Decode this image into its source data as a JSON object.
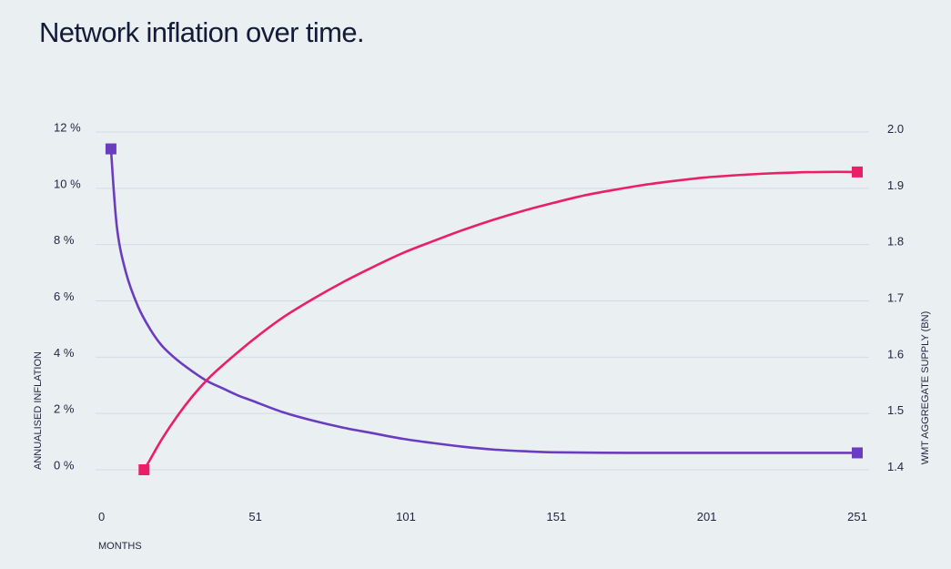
{
  "page": {
    "title": "Network inflation over time."
  },
  "chart_data": {
    "type": "line",
    "title": "Network inflation over time.",
    "xlabel": "MONTHS",
    "ylabel_left": "ANNUALISED INFLATION",
    "ylabel_right": "WMT AGGREGATE SUPPLY (BN)",
    "x_ticks": [
      "0",
      "51",
      "101",
      "151",
      "201",
      "251"
    ],
    "xlim": [
      0,
      251
    ],
    "y_left_ticks": [
      "0 %",
      "2 %",
      "4 %",
      "6 %",
      "8 %",
      "10 %",
      "12 %"
    ],
    "y_left_lim": [
      0,
      12
    ],
    "y_right_ticks": [
      "1.4",
      "1.5",
      "1.6",
      "1.7",
      "1.8",
      "1.9",
      "2.0"
    ],
    "y_right_lim": [
      1.4,
      2.0
    ],
    "grid": true,
    "legend": "none",
    "series": [
      {
        "axis": "left",
        "color": "#6a3cc0",
        "marker": "square",
        "x": [
          3,
          5,
          8,
          12,
          16,
          20,
          25,
          30,
          35,
          40,
          45,
          50,
          60,
          70,
          80,
          90,
          100,
          110,
          120,
          130,
          140,
          150,
          175,
          200,
          225,
          251
        ],
        "values": [
          11.4,
          8.6,
          7.0,
          5.8,
          5.0,
          4.4,
          3.9,
          3.5,
          3.15,
          2.9,
          2.65,
          2.45,
          2.05,
          1.75,
          1.5,
          1.3,
          1.1,
          0.95,
          0.82,
          0.72,
          0.66,
          0.62,
          0.6,
          0.6,
          0.6,
          0.6
        ]
      },
      {
        "axis": "right",
        "color": "#ea1f66",
        "marker": "square",
        "x": [
          14,
          16,
          20,
          25,
          30,
          35,
          40,
          50,
          60,
          70,
          80,
          90,
          100,
          110,
          120,
          130,
          140,
          150,
          160,
          170,
          180,
          190,
          200,
          210,
          220,
          230,
          240,
          251
        ],
        "values": [
          1.4,
          1.418,
          1.455,
          1.495,
          1.53,
          1.56,
          1.585,
          1.63,
          1.67,
          1.703,
          1.733,
          1.76,
          1.785,
          1.806,
          1.826,
          1.844,
          1.86,
          1.874,
          1.887,
          1.897,
          1.906,
          1.913,
          1.919,
          1.923,
          1.926,
          1.928,
          1.929,
          1.929
        ]
      }
    ]
  }
}
